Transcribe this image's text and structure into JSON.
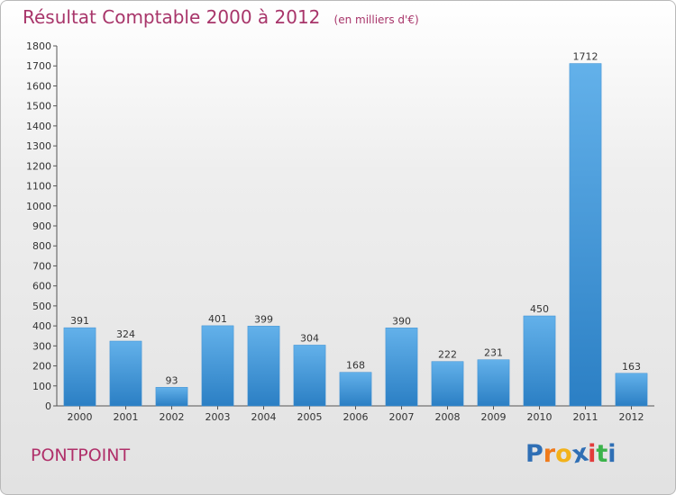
{
  "title": "Résultat Comptable 2000 à 2012",
  "unit_note": "(en milliers d'€)",
  "commune": "PONTPOINT",
  "logo": {
    "letters": [
      "P",
      "r",
      "o",
      "x",
      "i",
      "t",
      "i"
    ],
    "colors": [
      "#2f6fb5",
      "#f07a1a",
      "#f2b21a",
      "#2f6fb5",
      "#e23b3b",
      "#3bb34a",
      "#2f6fb5"
    ]
  },
  "colors": {
    "bar_top": "#63b1ea",
    "bar_bottom": "#2b7fc4",
    "title": "#a8356a"
  },
  "chart_data": {
    "type": "bar",
    "categories": [
      "2000",
      "2001",
      "2002",
      "2003",
      "2004",
      "2005",
      "2006",
      "2007",
      "2008",
      "2009",
      "2010",
      "2011",
      "2012"
    ],
    "values": [
      391,
      324,
      93,
      401,
      399,
      304,
      168,
      390,
      222,
      231,
      450,
      1712,
      163
    ],
    "ylim": [
      0,
      1800
    ],
    "yticks": [
      0,
      100,
      200,
      300,
      400,
      500,
      600,
      700,
      800,
      900,
      1000,
      1100,
      1200,
      1300,
      1400,
      1500,
      1600,
      1700,
      1800
    ],
    "grid": false,
    "title": "Résultat Comptable 2000 à 2012",
    "xlabel": "",
    "ylabel": ""
  }
}
